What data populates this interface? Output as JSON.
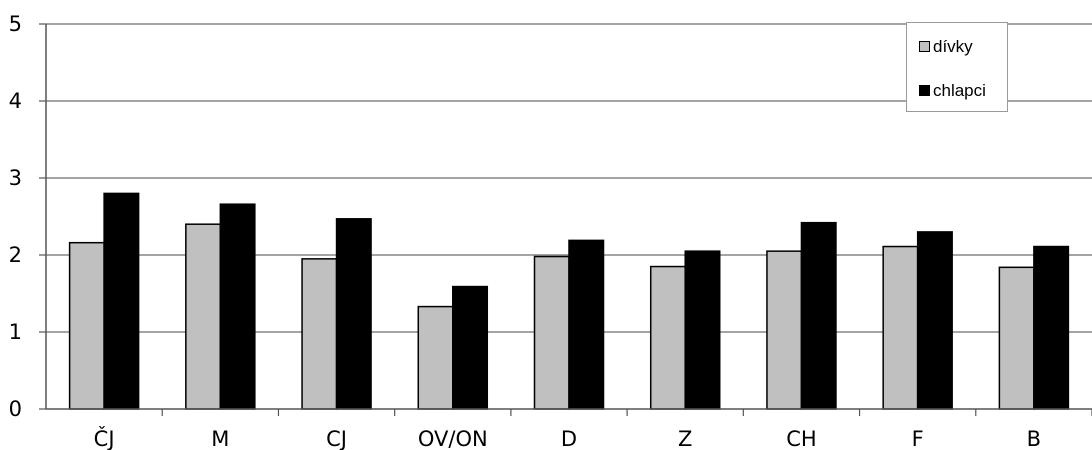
{
  "chart_data": {
    "type": "bar",
    "categories": [
      "ČJ",
      "M",
      "CJ",
      "OV/ON",
      "D",
      "Z",
      "CH",
      "F",
      "B"
    ],
    "series": [
      {
        "name": "dívky",
        "values": [
          2.16,
          2.4,
          1.95,
          1.33,
          1.98,
          1.85,
          2.05,
          2.11,
          1.84
        ],
        "color": "#c0c0c0"
      },
      {
        "name": "chlapci",
        "values": [
          2.8,
          2.66,
          2.47,
          1.59,
          2.19,
          2.05,
          2.42,
          2.3,
          2.11
        ],
        "color": "#000000"
      }
    ],
    "y_ticks": [
      "0",
      "1",
      "2",
      "3",
      "4",
      "5"
    ],
    "ylim": [
      0,
      5
    ],
    "grid": true,
    "legend_position": "top-right"
  }
}
